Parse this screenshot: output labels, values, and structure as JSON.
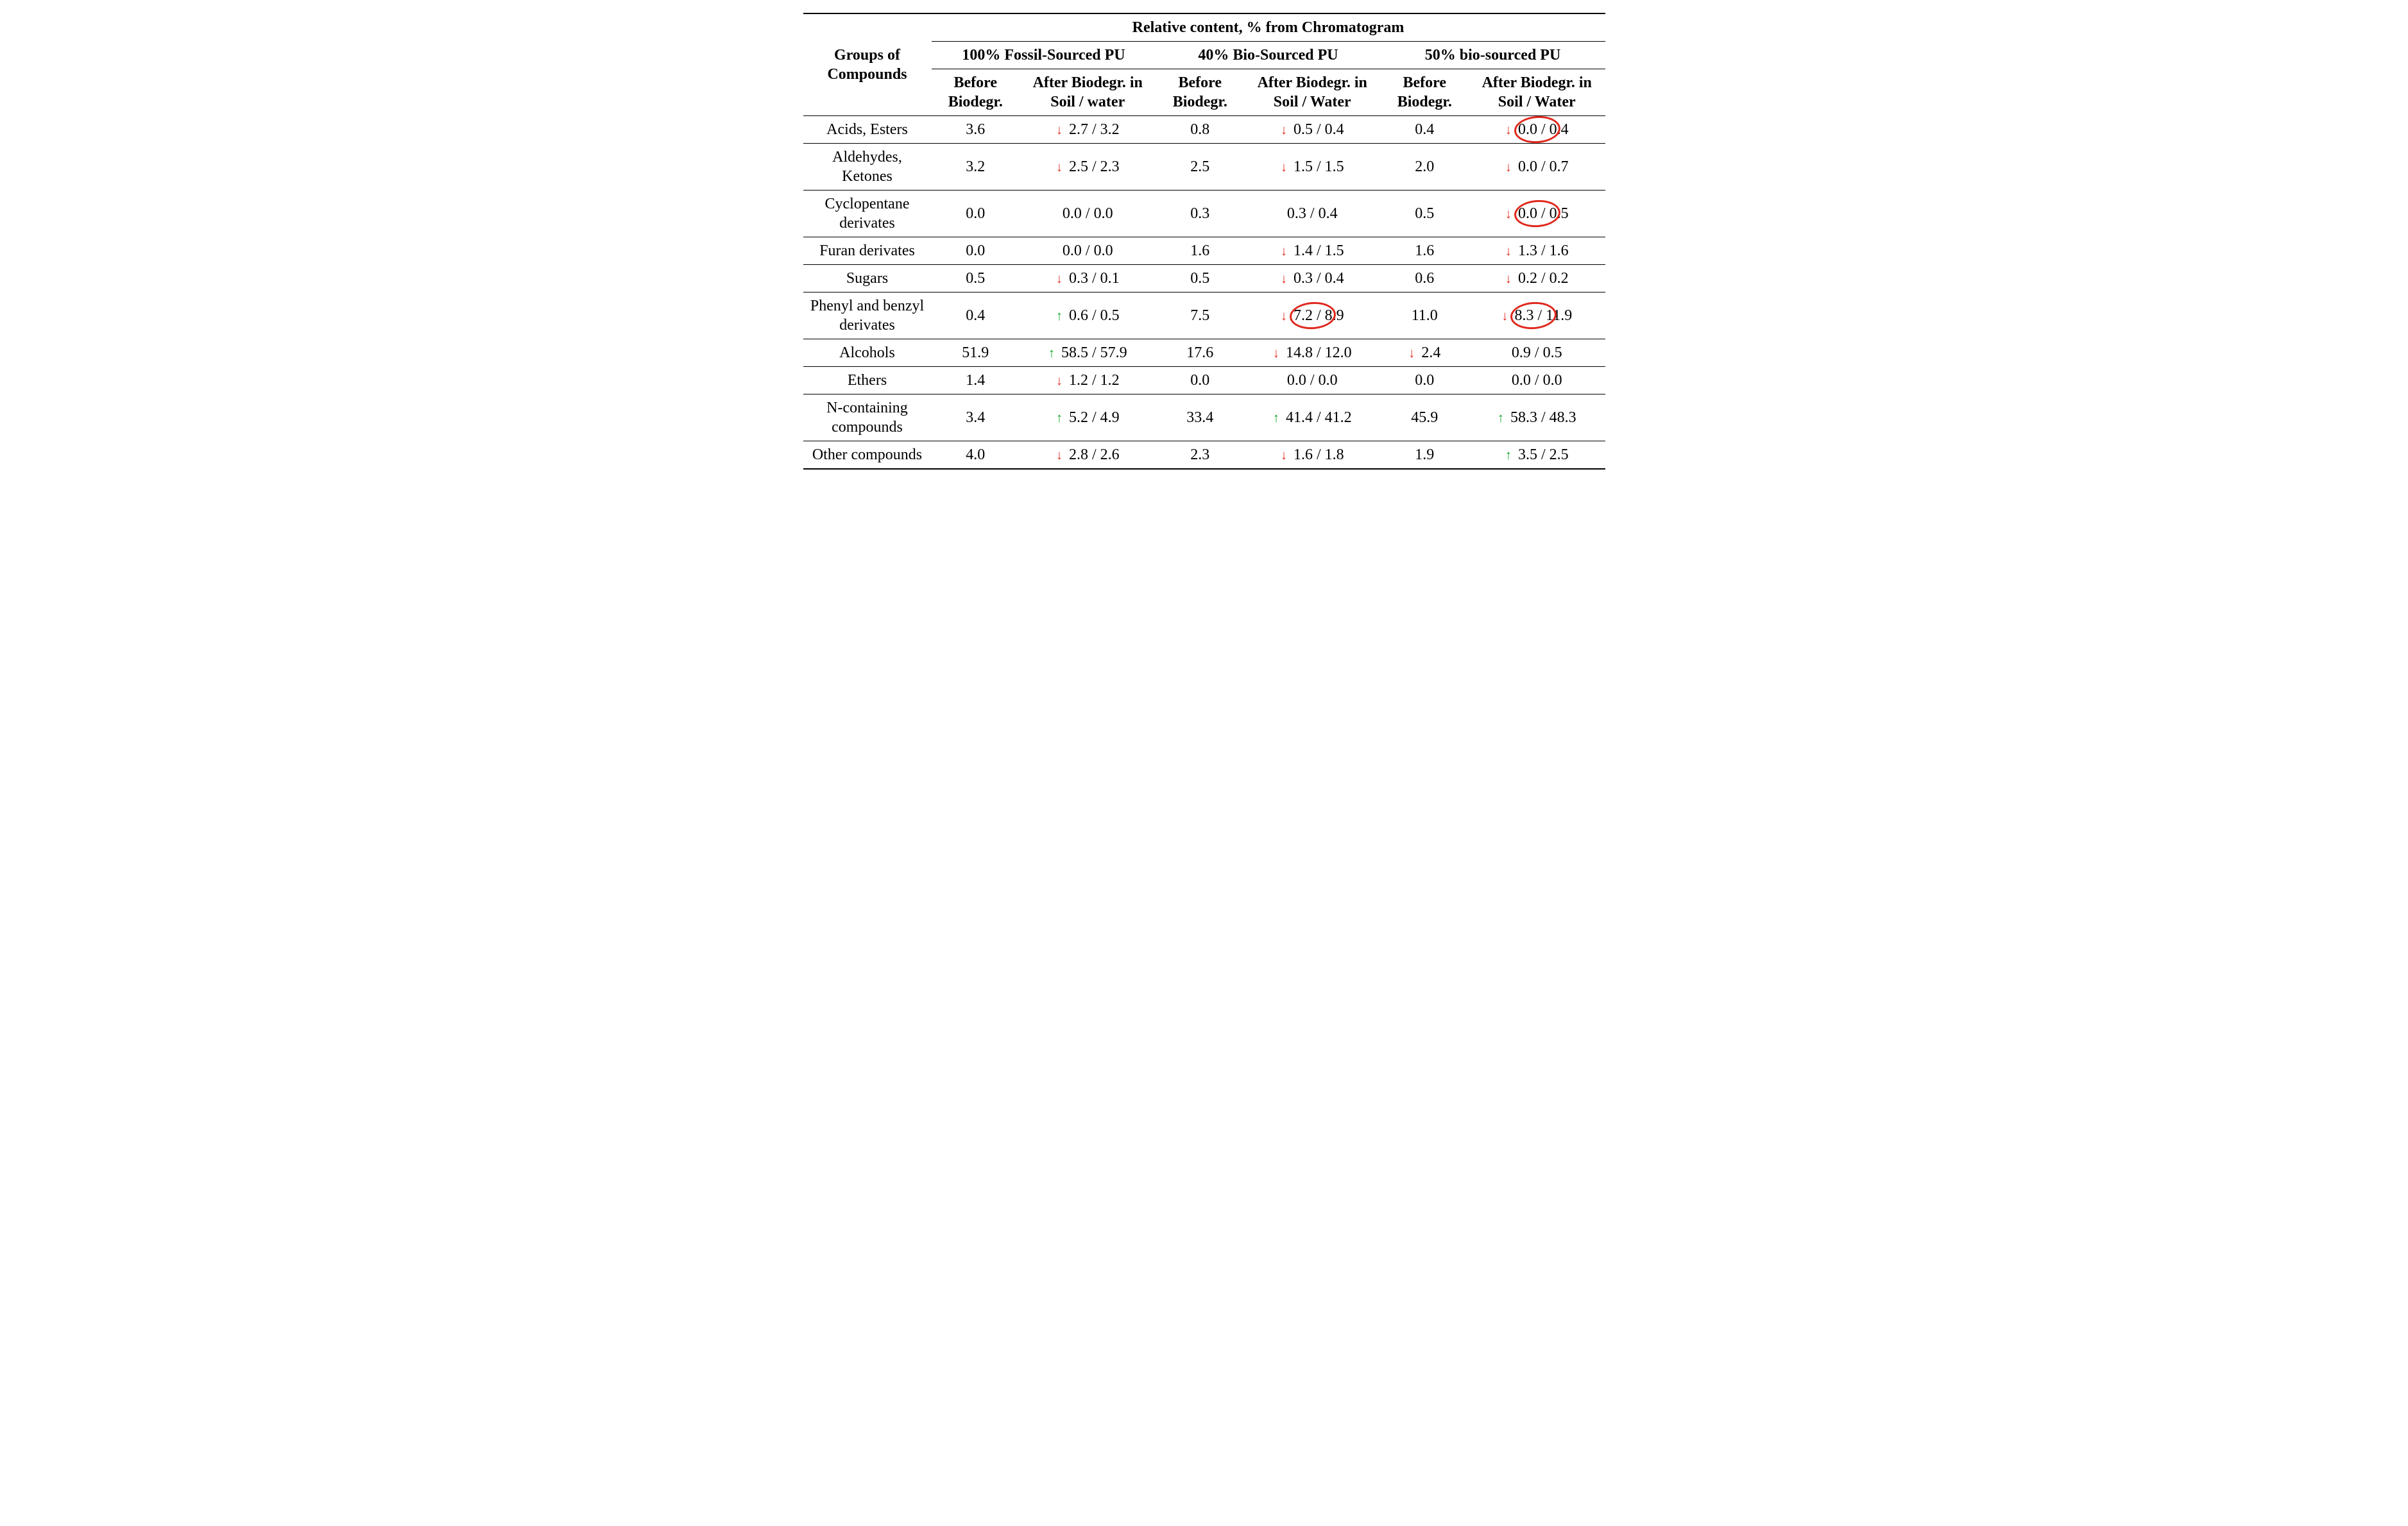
{
  "colors": {
    "arrow_up": "#12a52a",
    "arrow_down": "#e0281d",
    "circle": "#e0281d",
    "text": "#000000",
    "background": "#ffffff"
  },
  "header": {
    "rowLabel": "Groups of Compounds",
    "super": "Relative content, % from Chromatogram",
    "groups": [
      "100% Fossil-Sourced PU",
      "40% Bio-Sourced PU",
      "50% bio-sourced PU"
    ],
    "sub_before": "Before Biodegr.",
    "sub_after_a": "After Biodegr. in Soil / water",
    "sub_after_b": "After Biodegr. in Soil / Water",
    "sub_after_c": "After Biodegr. in Soil / Water"
  },
  "rows": [
    {
      "label": "Acids, Esters",
      "c": [
        {
          "v": "3.6"
        },
        {
          "v": "2.7 / 3.2",
          "arrow": "down"
        },
        {
          "v": "0.8"
        },
        {
          "v": "0.5 / 0.4",
          "arrow": "down"
        },
        {
          "v": "0.4"
        },
        {
          "v": "0.0 / 0.4",
          "arrow": "down",
          "circle": "0.0 /"
        }
      ]
    },
    {
      "label": "Aldehydes, Ketones",
      "c": [
        {
          "v": "3.2"
        },
        {
          "v": "2.5 / 2.3",
          "arrow": "down"
        },
        {
          "v": "2.5"
        },
        {
          "v": "1.5 / 1.5",
          "arrow": "down"
        },
        {
          "v": "2.0"
        },
        {
          "v": "0.0 / 0.7",
          "arrow": "down"
        }
      ]
    },
    {
      "label": "Cyclopentane derivates",
      "c": [
        {
          "v": "0.0"
        },
        {
          "v": "0.0 / 0.0"
        },
        {
          "v": "0.3"
        },
        {
          "v": "0.3 / 0.4"
        },
        {
          "v": "0.5"
        },
        {
          "v": "0.0 / 0.5",
          "arrow": "down",
          "circle": "0.0 /"
        }
      ]
    },
    {
      "label": "Furan derivates",
      "c": [
        {
          "v": "0.0"
        },
        {
          "v": "0.0 / 0.0"
        },
        {
          "v": "1.6"
        },
        {
          "v": "1.4 / 1.5",
          "arrow": "down"
        },
        {
          "v": "1.6"
        },
        {
          "v": "1.3 / 1.6",
          "arrow": "down"
        }
      ]
    },
    {
      "label": "Sugars",
      "c": [
        {
          "v": "0.5"
        },
        {
          "v": "0.3 / 0.1",
          "arrow": "down"
        },
        {
          "v": "0.5"
        },
        {
          "v": "0.3 / 0.4",
          "arrow": "down"
        },
        {
          "v": "0.6"
        },
        {
          "v": "0.2 / 0.2",
          "arrow": "down"
        }
      ]
    },
    {
      "label": "Phenyl and benzyl derivates",
      "c": [
        {
          "v": "0.4"
        },
        {
          "v": "0.6 / 0.5",
          "arrow": "up"
        },
        {
          "v": "7.5"
        },
        {
          "v": "7.2 / 8.9",
          "arrow": "down",
          "circle": "7.2 /"
        },
        {
          "v": "11.0"
        },
        {
          "v": "8.3 / 11.9",
          "arrow": "down",
          "circle": "8.3 /"
        }
      ]
    },
    {
      "label": "Alcohols",
      "c": [
        {
          "v": "51.9"
        },
        {
          "v": "58.5 / 57.9",
          "arrow": "up"
        },
        {
          "v": "17.6"
        },
        {
          "v": "14.8 / 12.0",
          "arrow": "down"
        },
        {
          "v": "2.4",
          "arrow": "down"
        },
        {
          "v": "0.9 / 0.5"
        }
      ]
    },
    {
      "label": "Ethers",
      "c": [
        {
          "v": "1.4"
        },
        {
          "v": "1.2 / 1.2",
          "arrow": "down"
        },
        {
          "v": "0.0"
        },
        {
          "v": "0.0 / 0.0"
        },
        {
          "v": "0.0"
        },
        {
          "v": "0.0 / 0.0"
        }
      ]
    },
    {
      "label": "N-containing compounds",
      "c": [
        {
          "v": "3.4"
        },
        {
          "v": "5.2 / 4.9",
          "arrow": "up"
        },
        {
          "v": "33.4"
        },
        {
          "v": "41.4 / 41.2",
          "arrow": "up"
        },
        {
          "v": "45.9"
        },
        {
          "v": "58.3 / 48.3",
          "arrow": "up"
        }
      ]
    },
    {
      "label": "Other compounds",
      "c": [
        {
          "v": "4.0"
        },
        {
          "v": "2.8 / 2.6",
          "arrow": "down"
        },
        {
          "v": "2.3"
        },
        {
          "v": "1.6 / 1.8",
          "arrow": "down"
        },
        {
          "v": "1.9"
        },
        {
          "v": "3.5 / 2.5",
          "arrow": "up"
        }
      ]
    }
  ]
}
